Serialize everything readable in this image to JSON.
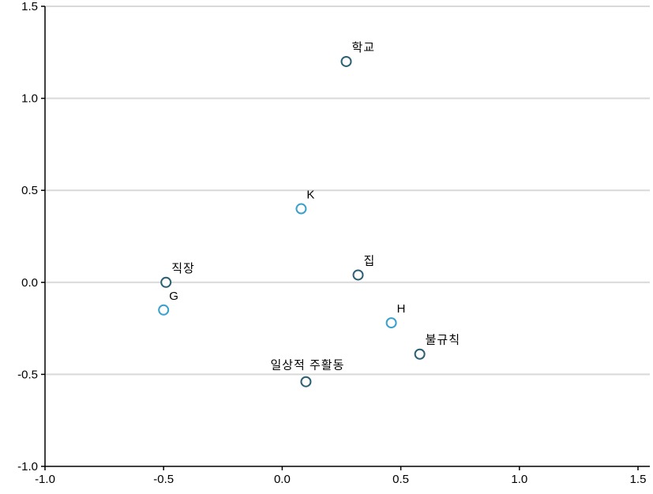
{
  "chart_data": {
    "type": "scatter",
    "title": "",
    "xlabel": "",
    "ylabel": "",
    "xlim": [
      -1.0,
      1.5
    ],
    "ylim": [
      -1.0,
      1.5
    ],
    "x_ticks": [
      "-1.0",
      "-0.5",
      "0.0",
      "0.5",
      "1.0",
      "1.5"
    ],
    "y_ticks": [
      "1.5",
      "1.0",
      "0.5",
      "0.0",
      "-0.5",
      "-1.0"
    ],
    "grid": "horizontal",
    "marker": "open-circle",
    "colors": {
      "marker_dark": "#2b5f74",
      "marker_light": "#3aa0cc",
      "grid": "#d9d9d9",
      "axis": "#000000"
    },
    "points": [
      {
        "label": "학교",
        "x": 0.27,
        "y": 1.2,
        "tone": "dark"
      },
      {
        "label": "K",
        "x": 0.08,
        "y": 0.4,
        "tone": "light"
      },
      {
        "label": "집",
        "x": 0.32,
        "y": 0.04,
        "tone": "dark"
      },
      {
        "label": "직장",
        "x": -0.49,
        "y": 0.0,
        "tone": "dark"
      },
      {
        "label": "G",
        "x": -0.5,
        "y": -0.15,
        "tone": "light"
      },
      {
        "label": "H",
        "x": 0.46,
        "y": -0.22,
        "tone": "light"
      },
      {
        "label": "불규칙",
        "x": 0.58,
        "y": -0.39,
        "tone": "dark"
      },
      {
        "label": "일상적 주활동",
        "x": 0.1,
        "y": -0.54,
        "tone": "dark"
      }
    ]
  }
}
